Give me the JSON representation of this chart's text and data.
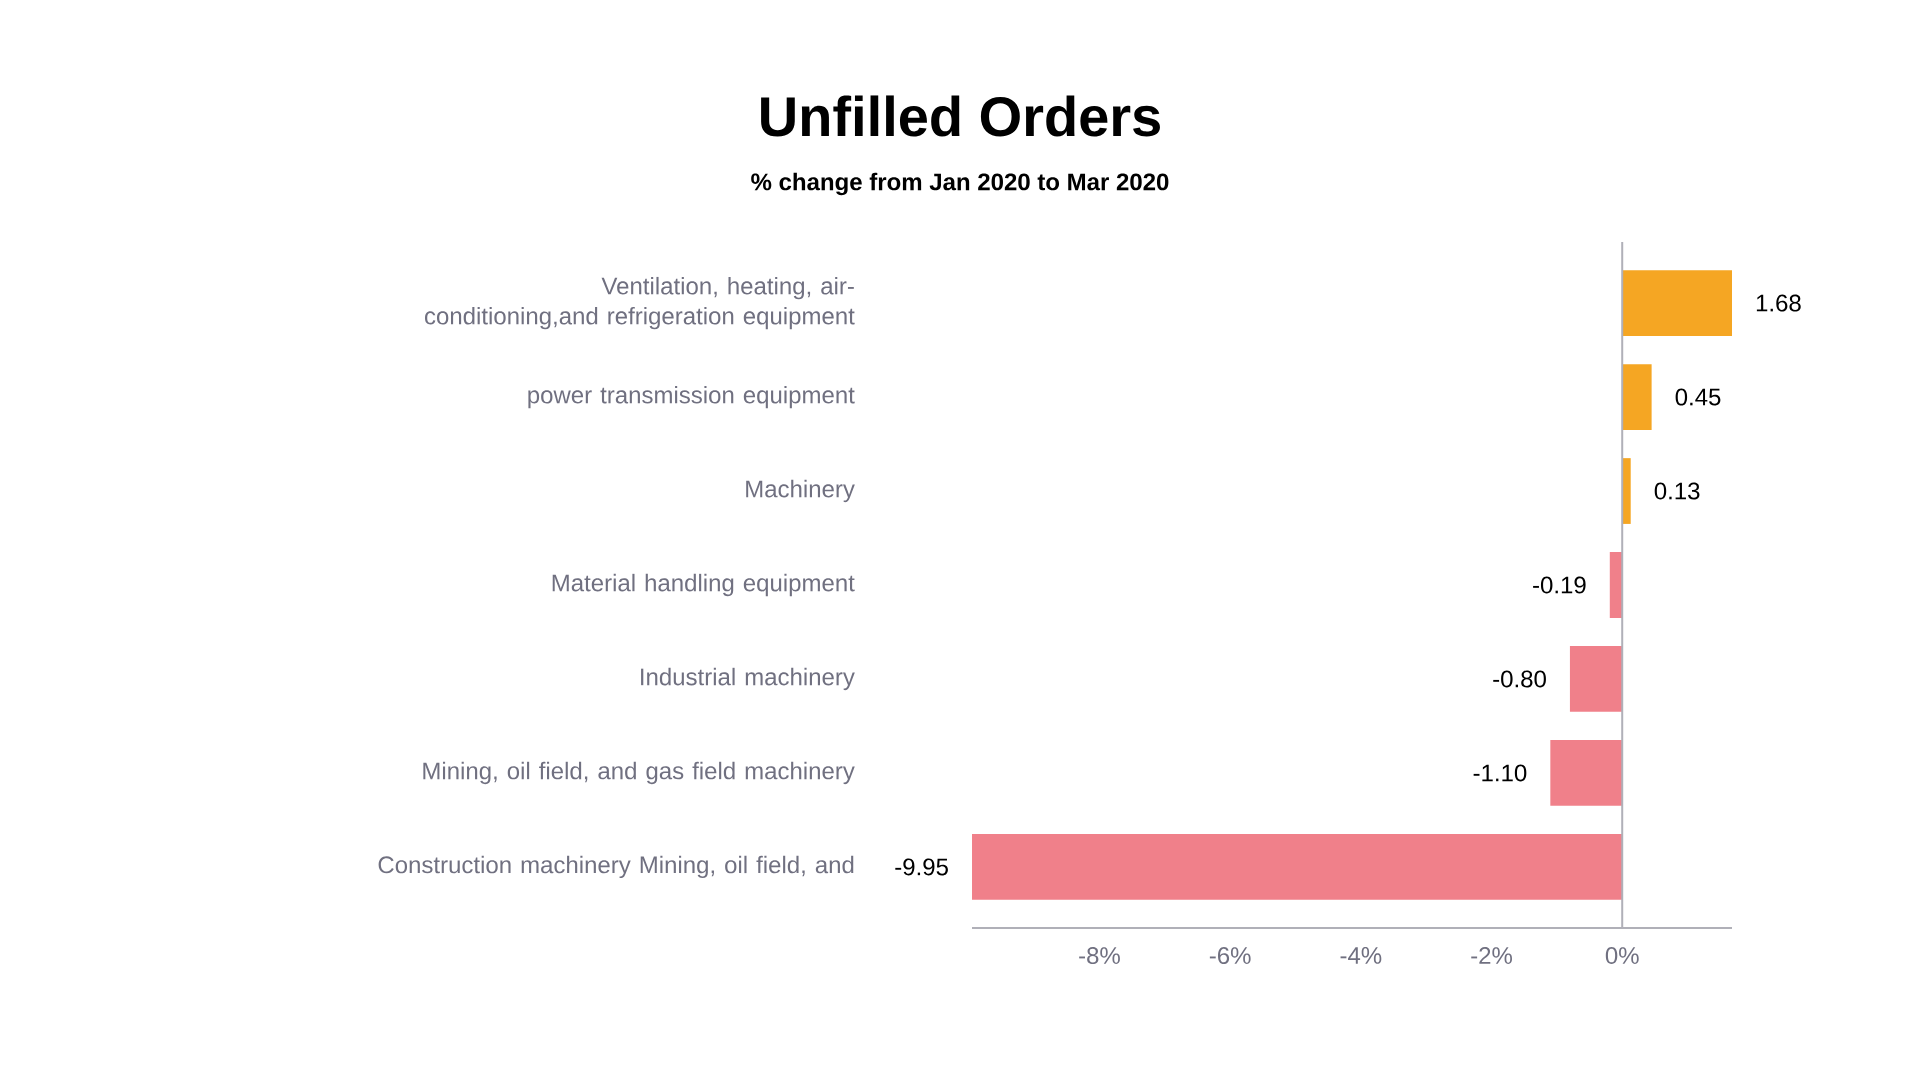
{
  "chart_data": {
    "type": "bar",
    "orientation": "horizontal",
    "title": "Unfilled Orders",
    "subtitle": "% change from Jan 2020 to Mar 2020",
    "categories": [
      "Ventilation, heating, air-conditioning,and refrigeration equipment",
      "power transmission equipment",
      "Machinery",
      "Material handling equipment",
      "Industrial machinery",
      "Mining, oil field, and gas field machinery",
      "Construction machinery Mining, oil field, and"
    ],
    "values": [
      1.68,
      0.45,
      0.13,
      -0.19,
      -0.8,
      -1.1,
      -9.95
    ],
    "value_labels": [
      "1.68",
      "0.45",
      "0.13",
      "-0.19",
      "-0.80",
      "-1.10",
      "-9.95"
    ],
    "colors": [
      "#f5a623",
      "#f5a623",
      "#f5a623",
      "#f0808a",
      "#f0808a",
      "#f0808a",
      "#f0808a"
    ],
    "xlim": [
      -9.95,
      1.68
    ],
    "xticks": [
      {
        "value": -8,
        "label": "-8%"
      },
      {
        "value": -6,
        "label": "-6%"
      },
      {
        "value": -4,
        "label": "-4%"
      },
      {
        "value": -2,
        "label": "-2%"
      },
      {
        "value": 0,
        "label": "0%"
      }
    ]
  }
}
